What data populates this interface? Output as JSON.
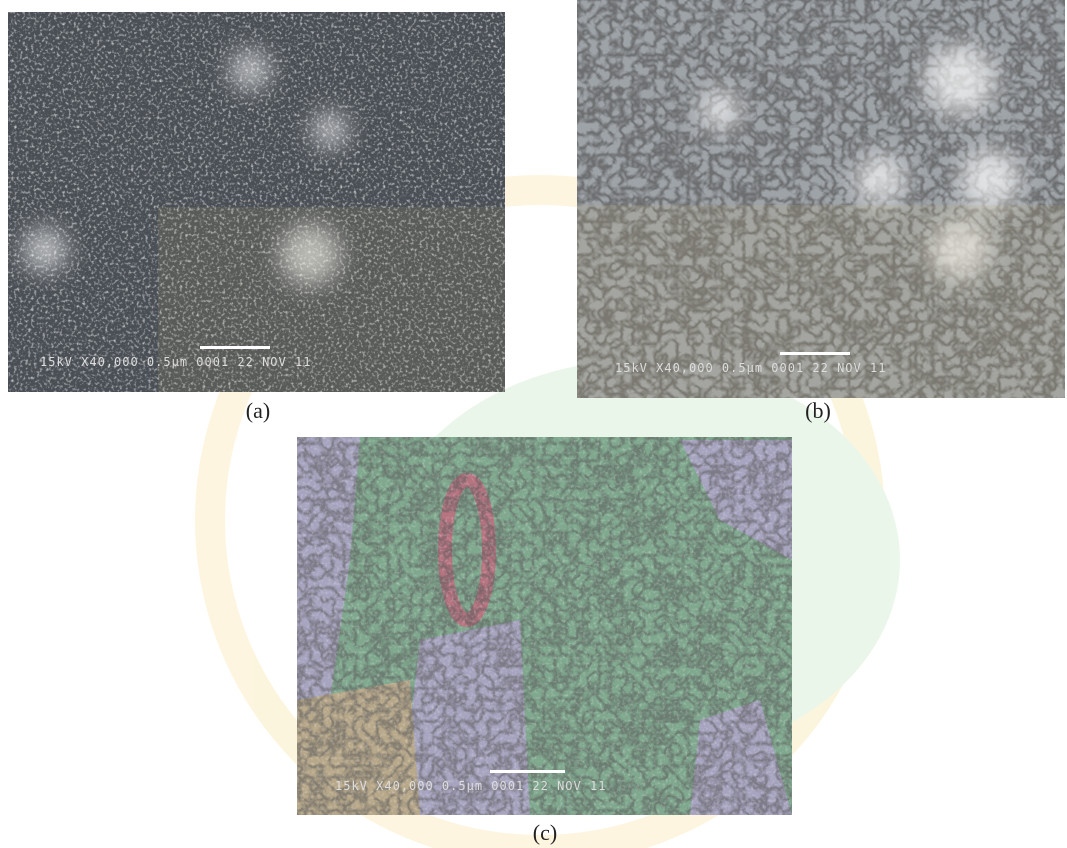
{
  "figures": [
    {
      "label": "(a)",
      "scale_text": "15kV X40,000 0.5μm 0001 22 NOV 11"
    },
    {
      "label": "(b)",
      "scale_text": "15kV X40,000 0.5μm 0001 22 NOV 11"
    },
    {
      "label": "(c)",
      "scale_text": "15kV X40,000 0.5μm 0001 22 NOV 11"
    }
  ]
}
